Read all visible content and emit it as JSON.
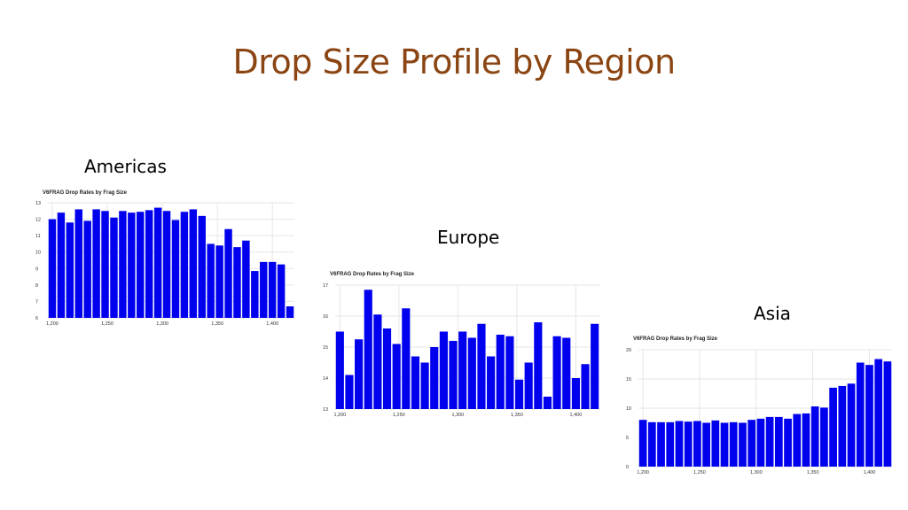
{
  "slide": {
    "title": "Drop Size Profile by Region"
  },
  "regions": [
    {
      "id": "americas",
      "label": "Americas"
    },
    {
      "id": "europe",
      "label": "Europe"
    },
    {
      "id": "asia",
      "label": "Asia"
    }
  ],
  "colors": {
    "title": "#8B4513",
    "bar": "#0000ee",
    "grid": "#e6e6e6"
  },
  "chart_data": [
    {
      "type": "bar",
      "region": "Americas",
      "title": "V6FRAG Drop Rates by Frag Size",
      "xlabel": "",
      "ylabel": "",
      "x": [
        1200,
        1208,
        1216,
        1224,
        1232,
        1240,
        1248,
        1256,
        1264,
        1272,
        1280,
        1288,
        1296,
        1304,
        1312,
        1320,
        1328,
        1336,
        1344,
        1352,
        1360,
        1368,
        1376,
        1384,
        1392,
        1400,
        1408,
        1416
      ],
      "values": [
        12.0,
        12.4,
        11.8,
        12.6,
        11.9,
        12.6,
        12.5,
        12.1,
        12.5,
        12.4,
        12.45,
        12.55,
        12.7,
        12.5,
        11.95,
        12.45,
        12.6,
        12.2,
        10.5,
        10.4,
        11.4,
        10.3,
        10.7,
        8.85,
        9.4,
        9.4,
        9.25,
        6.7
      ],
      "ylim": [
        6,
        13
      ],
      "yticks": [
        6,
        7,
        8,
        9,
        10,
        11,
        12,
        13
      ],
      "xticks": [
        1200,
        1250,
        1300,
        1350,
        1400
      ],
      "xtick_labels": [
        "1,200",
        "1,250",
        "1,300",
        "1,350",
        "1,400"
      ],
      "grid": true
    },
    {
      "type": "bar",
      "region": "Europe",
      "title": "V6FRAG Drop Rates by Frag Size",
      "xlabel": "",
      "ylabel": "",
      "x": [
        1200,
        1208,
        1216,
        1224,
        1232,
        1240,
        1248,
        1256,
        1264,
        1272,
        1280,
        1288,
        1296,
        1304,
        1312,
        1320,
        1328,
        1336,
        1344,
        1352,
        1360,
        1368,
        1376,
        1384,
        1392,
        1400,
        1408,
        1416
      ],
      "values": [
        15.5,
        14.1,
        15.25,
        16.85,
        16.05,
        15.6,
        15.1,
        16.25,
        14.7,
        14.5,
        15.0,
        15.5,
        15.2,
        15.5,
        15.3,
        15.75,
        14.7,
        15.4,
        15.35,
        13.95,
        14.5,
        15.8,
        13.4,
        15.35,
        15.3,
        14.0,
        14.45,
        15.75
      ],
      "ylim": [
        13,
        17
      ],
      "yticks": [
        13,
        14,
        15,
        16,
        17
      ],
      "xticks": [
        1200,
        1250,
        1300,
        1350,
        1400
      ],
      "xtick_labels": [
        "1,200",
        "1,250",
        "1,300",
        "1,350",
        "1,400"
      ],
      "grid": true
    },
    {
      "type": "bar",
      "region": "Asia",
      "title": "V6FRAG Drop Rates by Frag Size",
      "xlabel": "",
      "ylabel": "",
      "x": [
        1200,
        1208,
        1216,
        1224,
        1232,
        1240,
        1248,
        1256,
        1264,
        1272,
        1280,
        1288,
        1296,
        1304,
        1312,
        1320,
        1328,
        1336,
        1344,
        1352,
        1360,
        1368,
        1376,
        1384,
        1392,
        1400,
        1408,
        1416
      ],
      "values": [
        8.0,
        7.6,
        7.6,
        7.6,
        7.8,
        7.7,
        7.8,
        7.5,
        7.9,
        7.5,
        7.6,
        7.5,
        8.0,
        8.2,
        8.5,
        8.5,
        8.2,
        9.0,
        9.1,
        10.3,
        10.1,
        13.5,
        13.8,
        14.2,
        17.8,
        17.4,
        18.4,
        18.0
      ],
      "ylim": [
        0,
        20
      ],
      "yticks": [
        0,
        5,
        10,
        15,
        20
      ],
      "xticks": [
        1200,
        1250,
        1300,
        1350,
        1400
      ],
      "xtick_labels": [
        "1,200",
        "1,250",
        "1,300",
        "1,350",
        "1,400"
      ],
      "grid": true
    }
  ]
}
